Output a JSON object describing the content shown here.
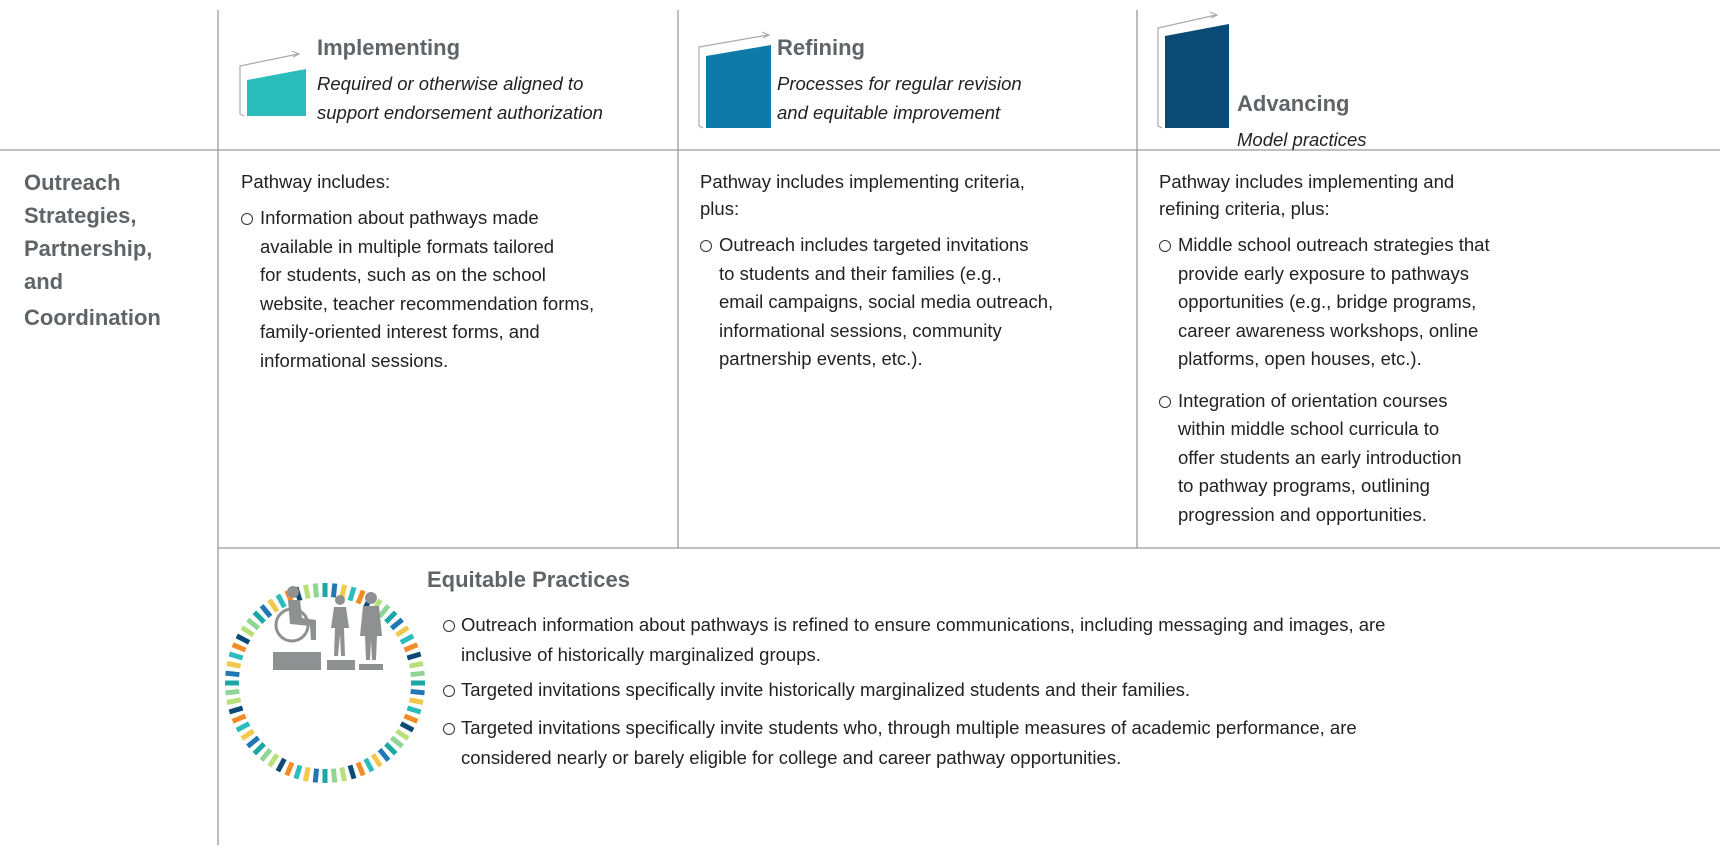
{
  "columns": [
    {
      "title": "Implementing",
      "subtitle_lines": [
        "Required or otherwise aligned to",
        "support endorsement authorization"
      ]
    },
    {
      "title": "Refining",
      "subtitle_lines": [
        "Processes for regular revision",
        "and equitable improvement"
      ]
    },
    {
      "title": "Advancing",
      "subtitle_lines": [
        "Model practices"
      ]
    }
  ],
  "row": {
    "label_lines": [
      "Outreach",
      "Strategies,",
      "Partnership,",
      "and",
      "Coordination"
    ],
    "cells": [
      {
        "intro_lines": [
          "Pathway includes:"
        ],
        "items": [
          {
            "lines": [
              "Information about pathways made",
              "available in multiple formats tailored",
              "for students, such as on the school",
              "website, teacher recommendation forms,",
              "family-oriented interest forms, and",
              "informational sessions."
            ]
          }
        ]
      },
      {
        "intro_lines": [
          "Pathway includes implementing criteria,",
          "plus:"
        ],
        "items": [
          {
            "lines": [
              "Outreach includes targeted invitations",
              "to students and their families (e.g.,",
              "email campaigns, social media outreach,",
              "informational sessions, community",
              "partnership events, etc.)."
            ]
          }
        ]
      },
      {
        "intro_lines": [
          "Pathway includes implementing and",
          "refining criteria, plus:"
        ],
        "items": [
          {
            "lines": [
              "Middle school outreach strategies that",
              "provide early exposure to pathways",
              "opportunities (e.g., bridge programs,",
              "career awareness workshops, online",
              "platforms, open houses, etc.)."
            ]
          },
          {
            "lines": [
              "Integration of orientation courses",
              "within middle school curricula to",
              "offer students an early introduction",
              "to pathway programs, outlining",
              "progression and opportunities."
            ]
          }
        ]
      }
    ]
  },
  "equitable": {
    "title": "Equitable Practices",
    "items": [
      {
        "lines": [
          "Outreach information about pathways is refined to ensure communications, including messaging and images, are",
          "inclusive of historically marginalized groups."
        ]
      },
      {
        "lines": [
          "Targeted invitations specifically invite historically marginalized students and their families."
        ]
      },
      {
        "lines": [
          "Targeted invitations specifically invite students who, through multiple measures of academic performance, are",
          "considered nearly or barely eligible for college and career pathway opportunities."
        ]
      }
    ]
  }
}
